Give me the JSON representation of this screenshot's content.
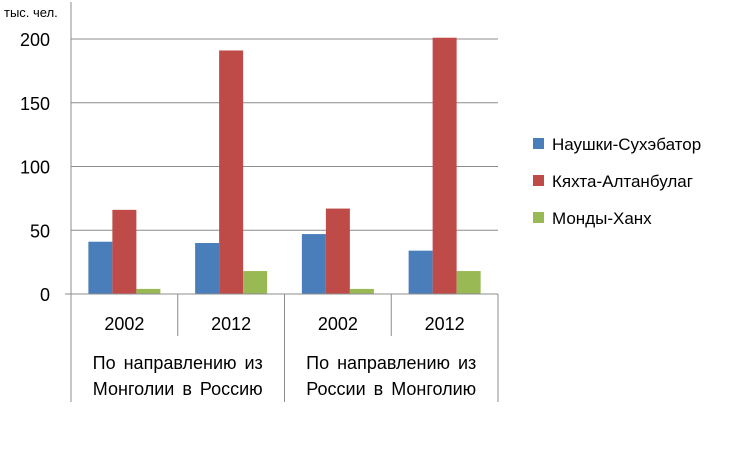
{
  "chart_data": {
    "type": "bar",
    "y_unit": "тыс. чел.",
    "ylim": [
      0,
      200
    ],
    "y_ticks": [
      "0",
      "50",
      "100",
      "150",
      "200"
    ],
    "grid": true,
    "legend_position": "right",
    "categories": [
      "2002",
      "2012",
      "2002",
      "2012"
    ],
    "groups": [
      {
        "label_lines": [
          "По направлению из",
          "Монголии в Россию"
        ],
        "categories": [
          0,
          1
        ]
      },
      {
        "label_lines": [
          "По направлению из",
          "России в Монголию"
        ],
        "categories": [
          2,
          3
        ]
      }
    ],
    "series": [
      {
        "name": "Наушки-Сухэбатор",
        "color": "#4a7ebb",
        "values": [
          41,
          40,
          47,
          34
        ]
      },
      {
        "name": "Кяхта-Алтанбулаг",
        "color": "#be4b48",
        "values": [
          66,
          191,
          67,
          201
        ]
      },
      {
        "name": "Монды-Ханх",
        "color": "#98b954",
        "values": [
          4,
          18,
          4,
          18
        ]
      }
    ]
  }
}
